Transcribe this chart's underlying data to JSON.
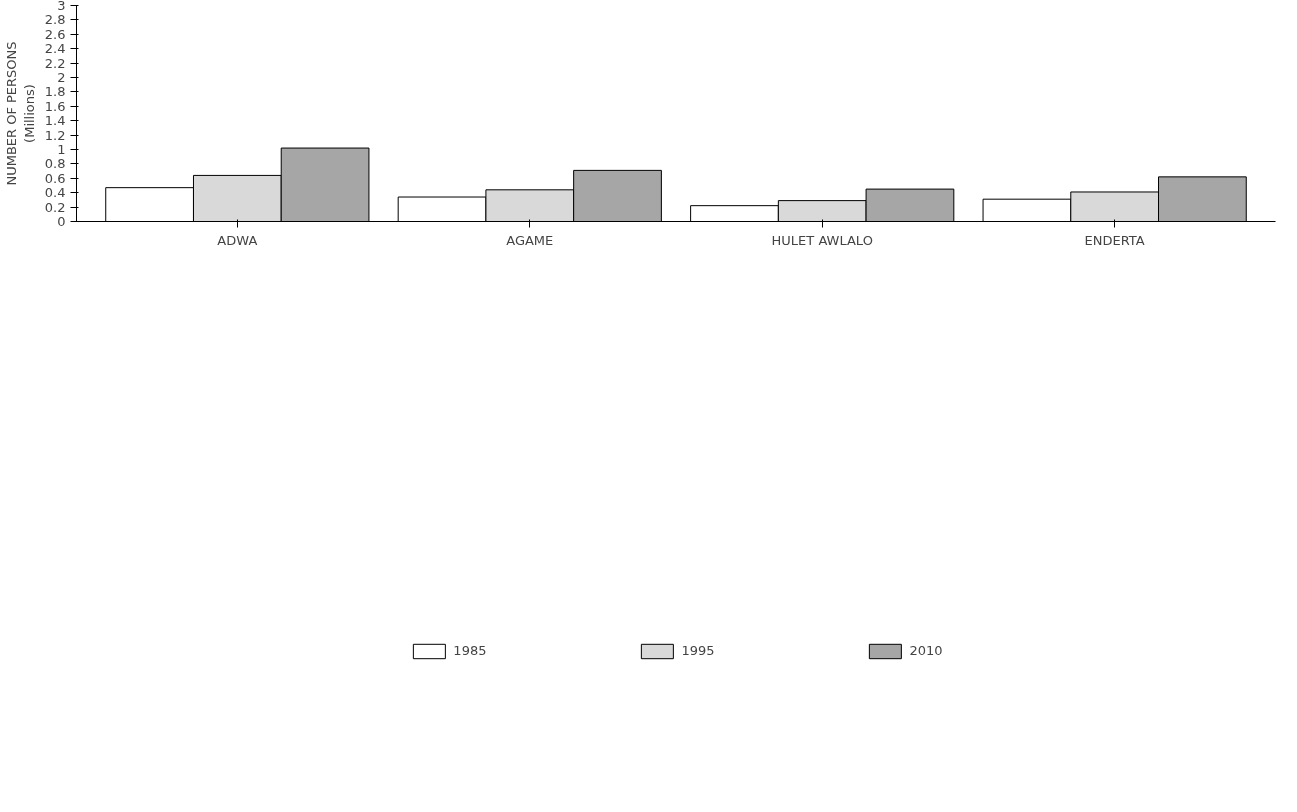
{
  "chart_data": {
    "type": "bar",
    "ylabel": "NUMBER OF PERSONS\n(Millions)",
    "categories": [
      "ADWA",
      "AGAME",
      "HULET AWLALO",
      "ENDERTA"
    ],
    "series": [
      {
        "name": "1985",
        "color": "#ffffff",
        "values": [
          0.47,
          0.34,
          0.22,
          0.31
        ]
      },
      {
        "name": "1995",
        "color": "#d9d9d9",
        "values": [
          0.64,
          0.44,
          0.29,
          0.41
        ]
      },
      {
        "name": "2010",
        "color": "#a6a6a6",
        "values": [
          1.02,
          0.71,
          0.45,
          0.62
        ]
      }
    ],
    "ylim": [
      0,
      3
    ],
    "yticks": [
      0,
      0.2,
      0.4,
      0.6,
      0.8,
      1,
      1.2,
      1.4,
      1.6,
      1.8,
      2,
      2.2,
      2.4,
      2.6,
      2.8,
      3
    ],
    "grid": false,
    "legend": "bottom"
  }
}
